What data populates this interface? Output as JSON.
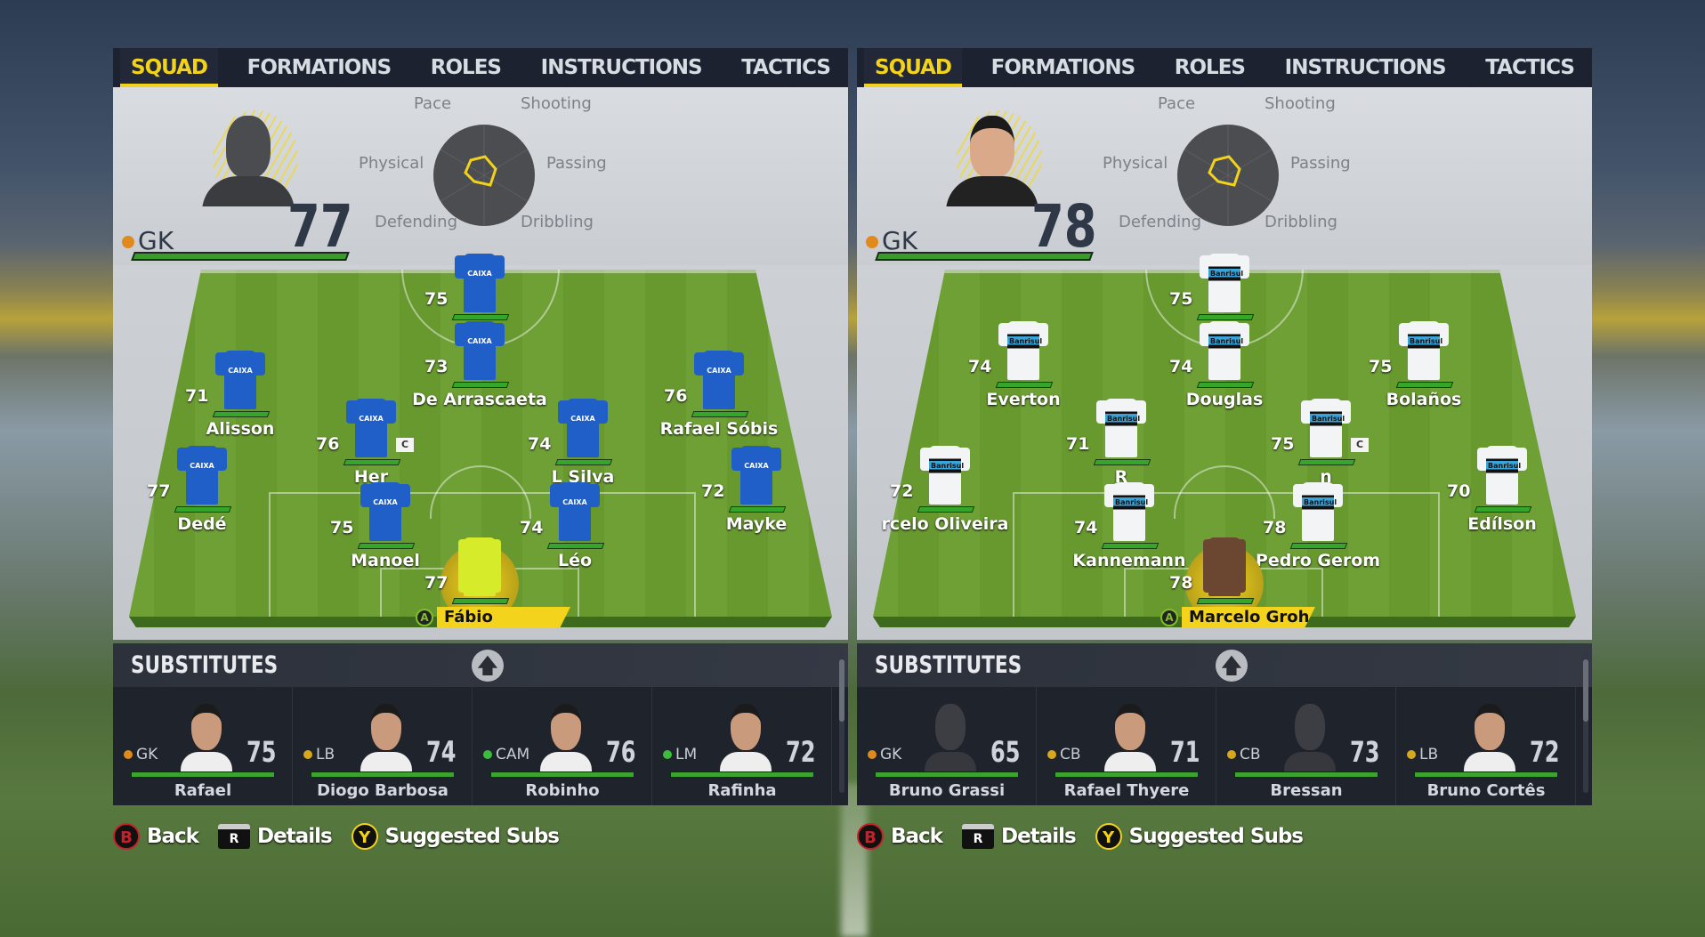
{
  "colors": {
    "accent": "#f2d21b",
    "rating_bar": "#35a52c",
    "pos_gk": "#e08a1e",
    "pos_def": "#d7a81c",
    "pos_mid": "#3cbc3c",
    "home_kit": "#1f5fc7",
    "away_kit": "#f2f4f6"
  },
  "panels": [
    {
      "tabs": [
        {
          "label": "SQUAD",
          "active": true
        },
        {
          "label": "FORMATIONS"
        },
        {
          "label": "ROLES"
        },
        {
          "label": "INSTRUCTIONS"
        },
        {
          "label": "TACTICS"
        }
      ],
      "selected": {
        "position": "GK",
        "rating": "77",
        "name": "Fábio",
        "pos_color": "#e08a1e",
        "photo": "silhouette"
      },
      "radar": {
        "pace": "Pace",
        "shooting": "Shooting",
        "physical": "Physical",
        "passing": "Passing",
        "defending": "Defending",
        "dribbling": "Dribbling"
      },
      "kit": {
        "color": "#1f5fc7",
        "sponsor": "CAIXA",
        "gk_color": "#d6ec2a"
      },
      "players": [
        {
          "rating": "75",
          "name": ""
        },
        {
          "rating": "73",
          "name": "De Arrascaeta"
        },
        {
          "rating": "71",
          "name": "Alisson"
        },
        {
          "rating": "76",
          "name": "Rafael Sóbis"
        },
        {
          "rating": "76",
          "name": "Her",
          "captain": "C"
        },
        {
          "rating": "74",
          "name": "L     Silva"
        },
        {
          "rating": "77",
          "name": "Dedé"
        },
        {
          "rating": "72",
          "name": "Mayke"
        },
        {
          "rating": "75",
          "name": "Manoel"
        },
        {
          "rating": "74",
          "name": "Léo"
        },
        {
          "rating": "77",
          "name": "Fábio",
          "selected": true,
          "button": "A"
        }
      ],
      "substitutes_label": "SUBSTITUTES",
      "subs": [
        {
          "position": "GK",
          "pos_color": "#e08a1e",
          "rating": "75",
          "name": "Rafael"
        },
        {
          "position": "LB",
          "pos_color": "#d7a81c",
          "rating": "74",
          "name": "Diogo Barbosa"
        },
        {
          "position": "CAM",
          "pos_color": "#3cbc3c",
          "rating": "76",
          "name": "Robinho"
        },
        {
          "position": "LM",
          "pos_color": "#3cbc3c",
          "rating": "72",
          "name": "Rafinha"
        }
      ],
      "hints": [
        {
          "button": "B",
          "label": "Back",
          "color": "#c8202a"
        },
        {
          "button": "R",
          "label": "Details",
          "color": "#fff"
        },
        {
          "button": "Y",
          "label": "Suggested Subs",
          "color": "#f2d21b"
        }
      ]
    },
    {
      "tabs": [
        {
          "label": "SQUAD",
          "active": true
        },
        {
          "label": "FORMATIONS"
        },
        {
          "label": "ROLES"
        },
        {
          "label": "INSTRUCTIONS"
        },
        {
          "label": "TACTICS"
        }
      ],
      "selected": {
        "position": "GK",
        "rating": "78",
        "name": "Marcelo Grohe",
        "pos_color": "#e08a1e",
        "photo": "real"
      },
      "radar": {
        "pace": "Pace",
        "shooting": "Shooting",
        "physical": "Physical",
        "passing": "Passing",
        "defending": "Defending",
        "dribbling": "Dribbling"
      },
      "kit": {
        "color": "#f2f4f6",
        "sponsor": "Banrisul",
        "gk_color": "#6b4631"
      },
      "players": [
        {
          "rating": "75",
          "name": ""
        },
        {
          "rating": "74",
          "name": "Douglas"
        },
        {
          "rating": "74",
          "name": "Everton"
        },
        {
          "rating": "75",
          "name": "Bolaños"
        },
        {
          "rating": "71",
          "name": "R"
        },
        {
          "rating": "75",
          "name": "n",
          "captain": "C"
        },
        {
          "rating": "72",
          "name": "rcelo Oliveira"
        },
        {
          "rating": "70",
          "name": "Edílson"
        },
        {
          "rating": "74",
          "name": "Kannemann"
        },
        {
          "rating": "78",
          "name": "Pedro Gerom"
        },
        {
          "rating": "78",
          "name": "Marcelo Groh",
          "selected": true,
          "button": "A"
        }
      ],
      "substitutes_label": "SUBSTITUTES",
      "subs": [
        {
          "position": "GK",
          "pos_color": "#e08a1e",
          "rating": "65",
          "name": "Bruno Grassi",
          "photo": "silhouette"
        },
        {
          "position": "CB",
          "pos_color": "#d7a81c",
          "rating": "71",
          "name": "Rafael Thyere"
        },
        {
          "position": "CB",
          "pos_color": "#d7a81c",
          "rating": "73",
          "name": "Bressan",
          "photo": "silhouette"
        },
        {
          "position": "LB",
          "pos_color": "#d7a81c",
          "rating": "72",
          "name": "Bruno Cortês"
        }
      ],
      "hints": [
        {
          "button": "B",
          "label": "Back",
          "color": "#c8202a"
        },
        {
          "button": "R",
          "label": "Details",
          "color": "#fff"
        },
        {
          "button": "Y",
          "label": "Suggested Subs",
          "color": "#f2d21b"
        }
      ]
    }
  ]
}
